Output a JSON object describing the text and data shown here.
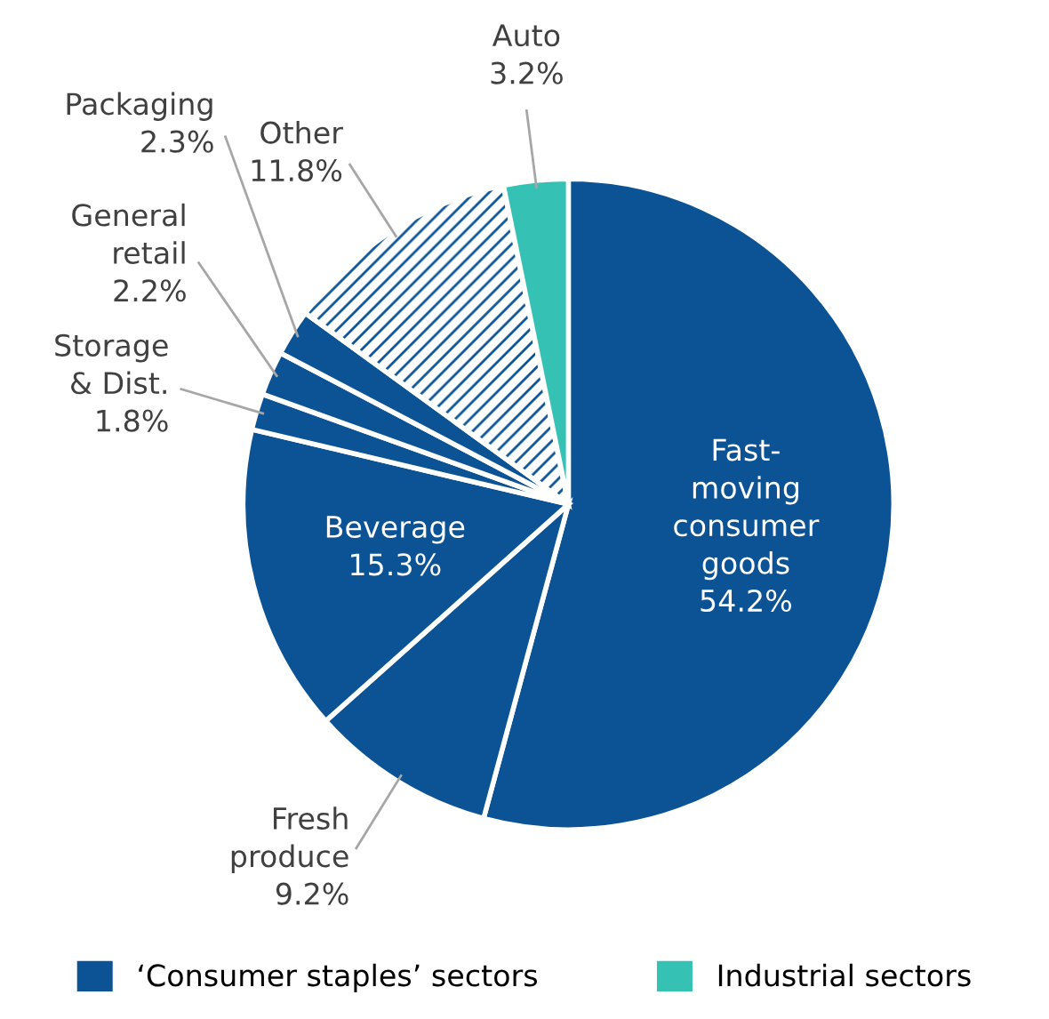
{
  "chart_data": {
    "type": "pie",
    "categories": [
      "Fast-\nmoving\nconsumer\ngoods",
      "Fresh\nproduce",
      "Beverage",
      "Storage\n& Dist.",
      "General\nretail",
      "Packaging",
      "Other",
      "Auto"
    ],
    "values": [
      54.2,
      9.2,
      15.3,
      1.8,
      2.2,
      2.3,
      11.8,
      3.2
    ],
    "colors": [
      "#0b5394",
      "#0b5394",
      "#0b5394",
      "#0b5394",
      "#0b5394",
      "#0b5394",
      "#ffffff",
      "#35c2b5"
    ],
    "value_labels": [
      "54.2%",
      "9.2%",
      "15.3%",
      "1.8%",
      "2.2%",
      "2.3%",
      "11.8%",
      "3.2%"
    ],
    "annotations": [
      "‘Consumer staples’ sectors",
      "Industrial sectors"
    ]
  }
}
